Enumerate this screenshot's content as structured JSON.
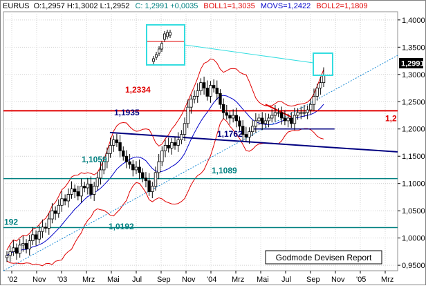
{
  "header": {
    "symbol": "EURUS",
    "ohlc": "O:1,2957 H:1,3002 L:1,2952",
    "close": "C: 1,2991 +0,0035",
    "boll1": "BOLL1=1,3035",
    "movs": "MOVS=1,2422",
    "boll2": "BOLL2=1,1809"
  },
  "last_price": "1,2991",
  "badge": {
    "text": "Godmode Devisen Report"
  },
  "colors": {
    "price": "#000000",
    "bollinger": "#e00000",
    "moving_average": "#0000c8",
    "trendline": "#000080",
    "support_level": "#008080",
    "resistance_level": "#e00000",
    "dotted_trend": "#1a8ad4",
    "highlight_box": "#33dde0",
    "grid": "#d0d0d0"
  },
  "chart_data": {
    "type": "candlestick",
    "title": "",
    "y_ticks": [
      "1,4000",
      "1,3500",
      "1,3000",
      "1,2500",
      "1,2000",
      "1,1500",
      "1,1000",
      "1,0500",
      "1,0000",
      "0,9500"
    ],
    "ylim": [
      0.94,
      1.415
    ],
    "x_ticks": [
      "'02",
      "Nov",
      "'03",
      "Mrz",
      "Mai",
      "Jul",
      "Sep",
      "Nov",
      "'04",
      "Mrz",
      "Mai",
      "Jul",
      "Sep",
      "Nov",
      "'05",
      "Mrz"
    ],
    "grid": true,
    "levels": [
      {
        "name": "",
        "label": "1,2334",
        "value": 1.2334,
        "color": "#e00000"
      },
      {
        "name": "",
        "label": "1,1089",
        "value": 1.1089,
        "color": "#008080"
      },
      {
        "name": "",
        "label": "1,0192",
        "value": 1.0192,
        "color": "#008080"
      }
    ],
    "clipped_level_labels": [
      "1,2",
      "192"
    ],
    "point_labels": [
      {
        "label": "1,1935",
        "value": 1.1935,
        "color": "#000080"
      },
      {
        "label": "1,1762",
        "value": 1.1762,
        "color": "#000080"
      },
      {
        "label": "1,1059",
        "value": 1.1059,
        "color": "#008080"
      }
    ],
    "trendlines": [
      {
        "from": [
          0.27,
          1.1935
        ],
        "to": [
          1.0,
          1.158
        ]
      },
      {
        "from": [
          0.63,
          1.2
        ],
        "to": [
          0.84,
          1.2
        ]
      }
    ],
    "close_series": [
      0.968,
      0.975,
      0.982,
      0.972,
      0.987,
      0.99,
      0.98,
      0.995,
      1.006,
      0.998,
      1.012,
      1.02,
      1.018,
      1.035,
      1.05,
      1.045,
      1.06,
      1.072,
      1.068,
      1.08,
      1.09,
      1.085,
      1.077,
      1.095,
      1.092,
      1.099,
      1.08,
      1.095,
      1.11,
      1.125,
      1.14,
      1.155,
      1.17,
      1.18,
      1.175,
      1.16,
      1.15,
      1.14,
      1.135,
      1.125,
      1.13,
      1.12,
      1.11,
      1.105,
      1.085,
      1.095,
      1.12,
      1.14,
      1.16,
      1.17,
      1.165,
      1.175,
      1.17,
      1.18,
      1.19,
      1.21,
      1.24,
      1.255,
      1.26,
      1.27,
      1.285,
      1.275,
      1.26,
      1.28,
      1.275,
      1.265,
      1.245,
      1.23,
      1.225,
      1.22,
      1.225,
      1.215,
      1.205,
      1.19,
      1.185,
      1.195,
      1.205,
      1.215,
      1.22,
      1.21,
      1.215,
      1.22,
      1.225,
      1.23,
      1.23,
      1.22,
      1.215,
      1.22,
      1.21,
      1.225,
      1.23,
      1.23,
      1.23,
      1.235,
      1.245,
      1.26,
      1.275,
      1.285,
      1.2991
    ]
  }
}
